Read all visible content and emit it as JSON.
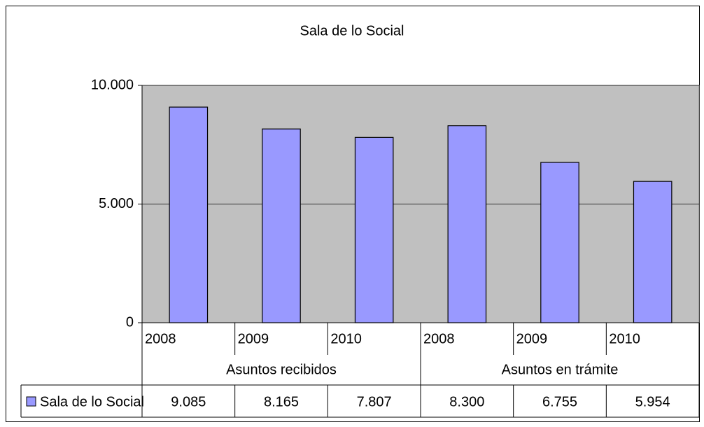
{
  "chart_data": {
    "type": "bar",
    "title": "Sala de lo Social",
    "groups": [
      "Asuntos recibidos",
      "Asuntos en trámite"
    ],
    "categories": [
      "2008",
      "2009",
      "2010",
      "2008",
      "2009",
      "2010"
    ],
    "series": [
      {
        "name": "Sala de lo Social",
        "color": "#9999ff",
        "values": [
          9085,
          8165,
          7807,
          8300,
          6755,
          5954
        ],
        "value_labels": [
          "9.085",
          "8.165",
          "7.807",
          "8.300",
          "6.755",
          "5.954"
        ]
      }
    ],
    "ylim": [
      0,
      10000
    ],
    "yticks": [
      0,
      {
        "value": 5000,
        "label": "5.000"
      },
      {
        "value": 10000,
        "label": "10.000"
      }
    ],
    "grid": true,
    "plot_background": "#c0c0c0"
  }
}
